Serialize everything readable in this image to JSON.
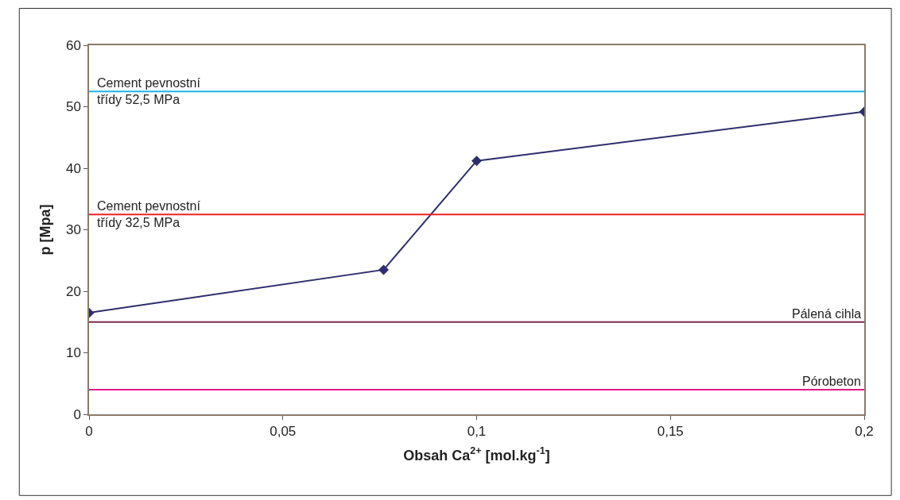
{
  "chart_data": {
    "type": "line",
    "xlabel": "Obsah Ca$^{2+}$ [mol.kg$^{-1}$]",
    "ylabel": "p [Mpa]",
    "x": [
      0,
      0.076,
      0.1,
      0.2
    ],
    "series": [
      {
        "color": "#2e2e6e",
        "values": [
          16.5,
          23.5,
          41.2,
          49.2
        ]
      }
    ],
    "marker": "diamond",
    "xlim": [
      0,
      0.2
    ],
    "ylim": [
      0,
      60
    ],
    "xticks": [
      0,
      {
        "value": 0.05,
        "label": "0,05"
      },
      {
        "value": 0.1,
        "label": "0,1"
      },
      {
        "value": 0.15,
        "label": "0,15"
      },
      {
        "value": 0.2,
        "label": "0,2"
      }
    ],
    "yticks": [
      0,
      10,
      20,
      30,
      40,
      50,
      60
    ],
    "ref_lines": [
      {
        "axis": "y",
        "value": 52.5,
        "label": "Cement pevnostní\ntřídy 52,5 MPa",
        "color": "#1fb4e8"
      },
      {
        "axis": "y",
        "value": 32.5,
        "label": "Cement pevnostní\ntřídy 32,5 MPa",
        "color": "#ee2222"
      },
      {
        "axis": "y",
        "value": 15,
        "label": "Pálená cihla",
        "color": "#7a2a4a"
      },
      {
        "axis": "y",
        "value": 4,
        "label": "Pórobeton",
        "color": "#e0198a"
      }
    ]
  }
}
